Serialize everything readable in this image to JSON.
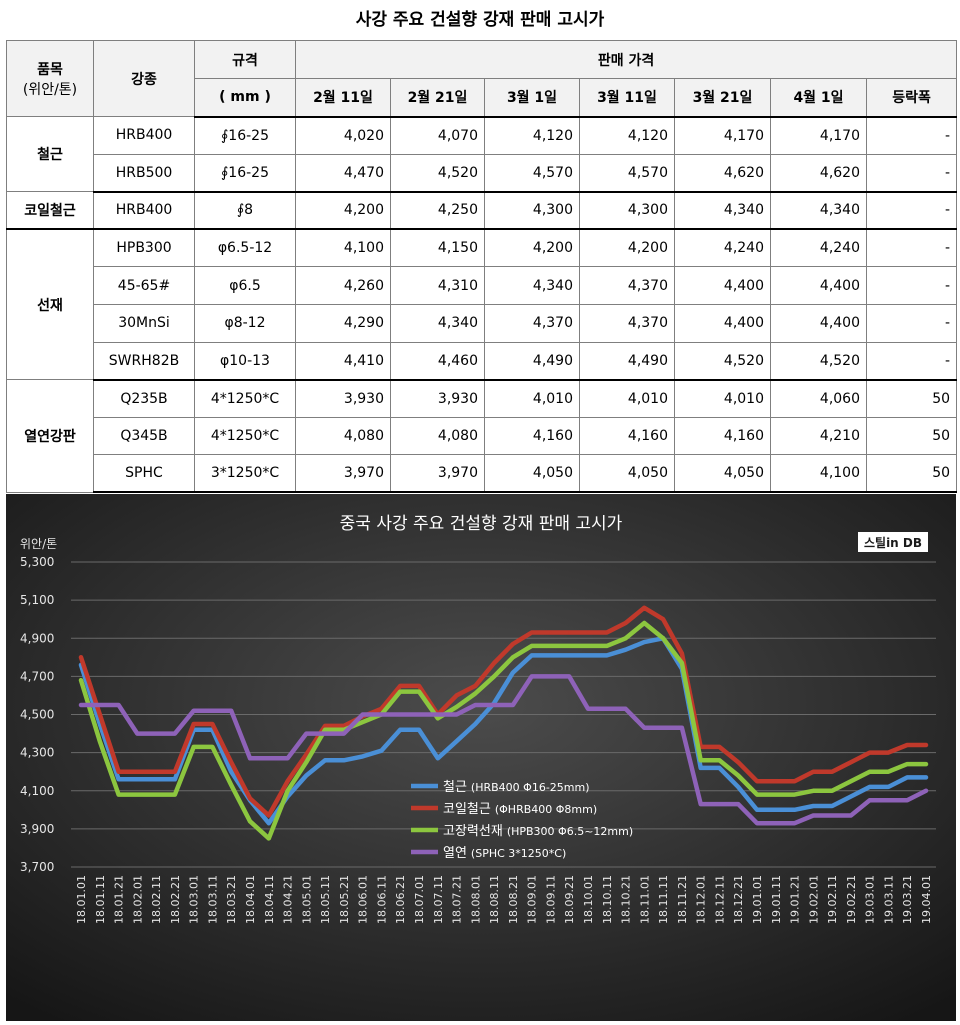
{
  "table": {
    "title": "사강 주요 건설향 강재 판매 고시가",
    "headers": {
      "item": "품목",
      "item_unit": "(위안/톤)",
      "grade": "강종",
      "spec": "규격",
      "spec_unit": "( mm )",
      "price": "판매 가격",
      "dates": [
        "2월 11일",
        "2월 21일",
        "3월 1일",
        "3월 11일",
        "3월 21일",
        "4월 1일"
      ],
      "change": "등락폭"
    },
    "groups": [
      {
        "category": "철근",
        "rows": [
          {
            "grade": "HRB400",
            "spec": "∮16-25",
            "prices": [
              "4,020",
              "4,070",
              "4,120",
              "4,120",
              "4,170",
              "4,170"
            ],
            "change": "-"
          },
          {
            "grade": "HRB500",
            "spec": "∮16-25",
            "prices": [
              "4,470",
              "4,520",
              "4,570",
              "4,570",
              "4,620",
              "4,620"
            ],
            "change": "-"
          }
        ]
      },
      {
        "category": "코일철근",
        "rows": [
          {
            "grade": "HRB400",
            "spec": "∮8",
            "prices": [
              "4,200",
              "4,250",
              "4,300",
              "4,300",
              "4,340",
              "4,340"
            ],
            "change": "-"
          }
        ]
      },
      {
        "category": "선재",
        "rows": [
          {
            "grade": "HPB300",
            "spec": "φ6.5-12",
            "prices": [
              "4,100",
              "4,150",
              "4,200",
              "4,200",
              "4,240",
              "4,240"
            ],
            "change": "-"
          },
          {
            "grade": "45-65#",
            "spec": "φ6.5",
            "prices": [
              "4,260",
              "4,310",
              "4,340",
              "4,370",
              "4,400",
              "4,400"
            ],
            "change": "-"
          },
          {
            "grade": "30MnSi",
            "spec": "φ8-12",
            "prices": [
              "4,290",
              "4,340",
              "4,370",
              "4,370",
              "4,400",
              "4,400"
            ],
            "change": "-"
          },
          {
            "grade": "SWRH82B",
            "spec": "φ10-13",
            "prices": [
              "4,410",
              "4,460",
              "4,490",
              "4,490",
              "4,520",
              "4,520"
            ],
            "change": "-"
          }
        ]
      },
      {
        "category": "열연강판",
        "rows": [
          {
            "grade": "Q235B",
            "spec": "4*1250*C",
            "prices": [
              "3,930",
              "3,930",
              "4,010",
              "4,010",
              "4,010",
              "4,060"
            ],
            "change": "50"
          },
          {
            "grade": "Q345B",
            "spec": "4*1250*C",
            "prices": [
              "4,080",
              "4,080",
              "4,160",
              "4,160",
              "4,160",
              "4,210"
            ],
            "change": "50"
          },
          {
            "grade": "SPHC",
            "spec": "3*1250*C",
            "prices": [
              "3,970",
              "3,970",
              "4,050",
              "4,050",
              "4,050",
              "4,100"
            ],
            "change": "50"
          }
        ]
      }
    ]
  },
  "chart_data": {
    "type": "line",
    "title": "중국 사강 주요 건설향 강재 판매 고시가",
    "ylabel": "위안/톤",
    "xlabel": "",
    "logo": "스틸in DB",
    "ylim": [
      3700,
      5300
    ],
    "yticks": [
      "5,300",
      "5,100",
      "4,900",
      "4,700",
      "4,500",
      "4,300",
      "4,100",
      "3,900",
      "3,700"
    ],
    "grid": true,
    "legend": "center",
    "x": [
      "18.01.01",
      "18.01.11",
      "18.01.21",
      "18.02.01",
      "18.02.11",
      "18.02.21",
      "18.03.01",
      "18.03.11",
      "18.03.21",
      "18.04.01",
      "18.04.11",
      "18.04.21",
      "18.05.01",
      "18.05.11",
      "18.05.21",
      "18.06.01",
      "18.06.11",
      "18.06.21",
      "18.07.01",
      "18.07.11",
      "18.07.21",
      "18.08.01",
      "18.08.11",
      "18.08.21",
      "18.09.01",
      "18.09.11",
      "18.09.21",
      "18.10.01",
      "18.10.11",
      "18.10.21",
      "18.11.01",
      "18.11.11",
      "18.11.21",
      "18.12.01",
      "18.12.11",
      "18.12.21",
      "19.01.01",
      "19.01.11",
      "19.01.21",
      "19.02.01",
      "19.02.11",
      "19.02.21",
      "19.03.01",
      "19.03.11",
      "19.03.21",
      "19.04.01"
    ],
    "series": [
      {
        "name": "철근",
        "note": "(HRB400 Φ16-25mm)",
        "color": "#4a8fd6",
        "values": [
          4760,
          4450,
          4160,
          4160,
          4160,
          4160,
          4420,
          4420,
          4200,
          4050,
          3930,
          4070,
          4180,
          4260,
          4260,
          4280,
          4310,
          4420,
          4420,
          4270,
          4360,
          4450,
          4560,
          4720,
          4810,
          4810,
          4810,
          4810,
          4810,
          4840,
          4880,
          4900,
          4740,
          4220,
          4220,
          4120,
          4000,
          4000,
          4000,
          4020,
          4020,
          4070,
          4120,
          4120,
          4170,
          4170
        ]
      },
      {
        "name": "코일철근",
        "note": "(ΦHRB400 Φ8mm)",
        "color": "#c0392b",
        "values": [
          4800,
          4500,
          4200,
          4200,
          4200,
          4200,
          4450,
          4450,
          4250,
          4060,
          3970,
          4150,
          4290,
          4440,
          4440,
          4490,
          4530,
          4650,
          4650,
          4500,
          4600,
          4650,
          4770,
          4870,
          4930,
          4930,
          4930,
          4930,
          4930,
          4980,
          5060,
          5000,
          4820,
          4330,
          4330,
          4250,
          4150,
          4150,
          4150,
          4200,
          4200,
          4250,
          4300,
          4300,
          4340,
          4340
        ]
      },
      {
        "name": "고장력선재",
        "note": "(HPB300 Φ6.5~12mm)",
        "color": "#8cc63f",
        "values": [
          4680,
          4360,
          4080,
          4080,
          4080,
          4080,
          4330,
          4330,
          4130,
          3940,
          3850,
          4100,
          4250,
          4420,
          4420,
          4460,
          4500,
          4620,
          4620,
          4480,
          4540,
          4610,
          4700,
          4800,
          4860,
          4860,
          4860,
          4860,
          4860,
          4900,
          4980,
          4900,
          4770,
          4260,
          4260,
          4180,
          4080,
          4080,
          4080,
          4100,
          4100,
          4150,
          4200,
          4200,
          4240,
          4240
        ]
      },
      {
        "name": "열연",
        "note": "(SPHC 3*1250*C)",
        "color": "#8e62b8",
        "values": [
          4550,
          4550,
          4550,
          4400,
          4400,
          4400,
          4520,
          4520,
          4520,
          4270,
          4270,
          4270,
          4400,
          4400,
          4400,
          4500,
          4500,
          4500,
          4500,
          4500,
          4500,
          4550,
          4550,
          4550,
          4700,
          4700,
          4700,
          4530,
          4530,
          4530,
          4430,
          4430,
          4430,
          4030,
          4030,
          4030,
          3930,
          3930,
          3930,
          3970,
          3970,
          3970,
          4050,
          4050,
          4050,
          4100
        ]
      }
    ]
  }
}
